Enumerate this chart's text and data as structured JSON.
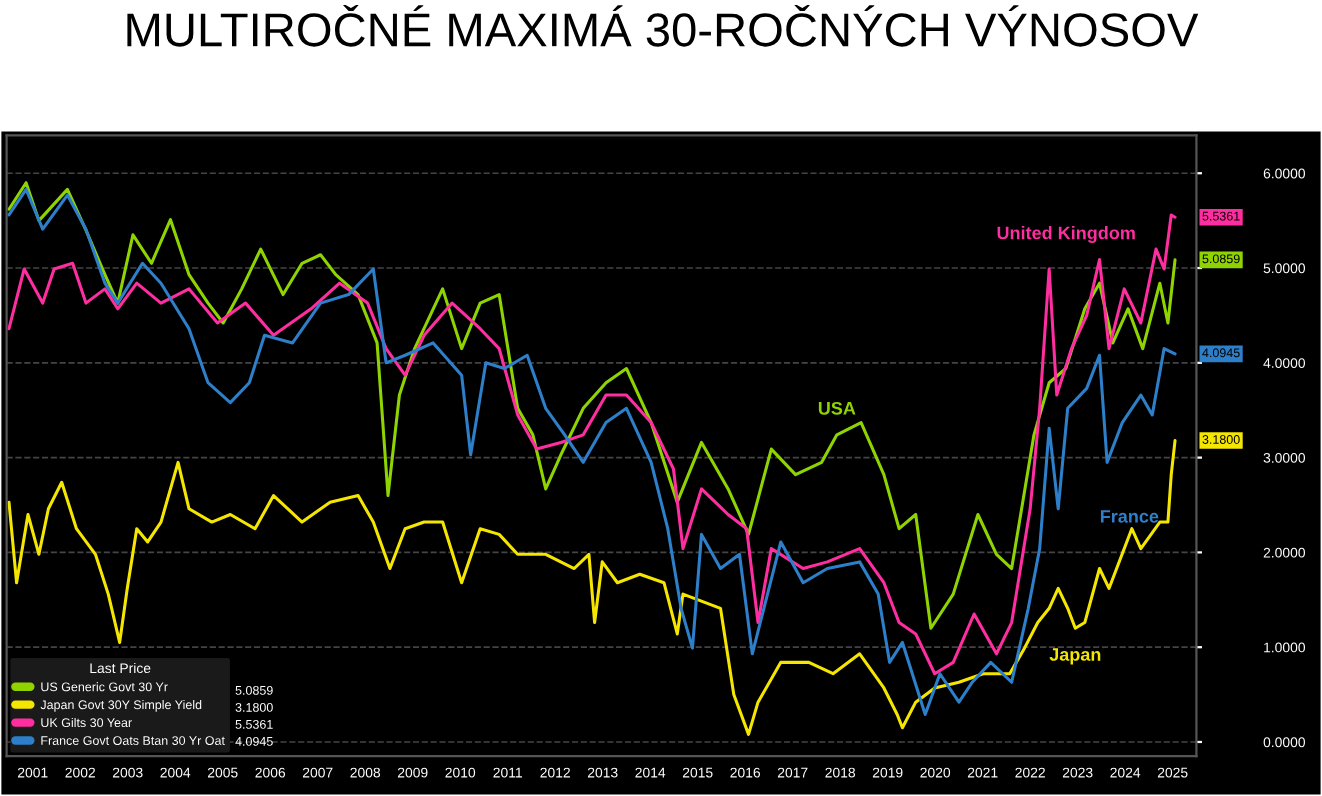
{
  "chart_data": {
    "type": "line",
    "title": "MULTIROČNÉ MAXIMÁ 30-ROČNÝCH VÝNOSOV",
    "legend_title": "Last Price",
    "legend": "bottom left",
    "grid": "y",
    "xlim": [
      2000.95,
      2026.0
    ],
    "ylim": [
      -0.15,
      6.4
    ],
    "xticks": [
      {
        "value": 2001.5,
        "label": "2001"
      },
      {
        "value": 2002.5,
        "label": "2002"
      },
      {
        "value": 2003.5,
        "label": "2003"
      },
      {
        "value": 2004.5,
        "label": "2004"
      },
      {
        "value": 2005.5,
        "label": "2005"
      },
      {
        "value": 2006.5,
        "label": "2006"
      },
      {
        "value": 2007.5,
        "label": "2007"
      },
      {
        "value": 2008.5,
        "label": "2008"
      },
      {
        "value": 2009.5,
        "label": "2009"
      },
      {
        "value": 2010.5,
        "label": "2010"
      },
      {
        "value": 2011.5,
        "label": "2011"
      },
      {
        "value": 2012.5,
        "label": "2012"
      },
      {
        "value": 2013.5,
        "label": "2013"
      },
      {
        "value": 2014.5,
        "label": "2014"
      },
      {
        "value": 2015.5,
        "label": "2015"
      },
      {
        "value": 2016.5,
        "label": "2016"
      },
      {
        "value": 2017.5,
        "label": "2017"
      },
      {
        "value": 2018.5,
        "label": "2018"
      },
      {
        "value": 2019.5,
        "label": "2019"
      },
      {
        "value": 2020.5,
        "label": "2020"
      },
      {
        "value": 2021.5,
        "label": "2021"
      },
      {
        "value": 2022.5,
        "label": "2022"
      },
      {
        "value": 2023.5,
        "label": "2023"
      },
      {
        "value": 2024.5,
        "label": "2024"
      },
      {
        "value": 2025.5,
        "label": "2025"
      }
    ],
    "yticks": [
      {
        "value": 0,
        "label": "0.0000"
      },
      {
        "value": 1,
        "label": "1.0000"
      },
      {
        "value": 2,
        "label": "2.0000"
      },
      {
        "value": 3,
        "label": "3.0000"
      },
      {
        "value": 4,
        "label": "4.0000"
      },
      {
        "value": 5,
        "label": "5.0000"
      },
      {
        "value": 6,
        "label": "6.0000"
      }
    ],
    "series": [
      {
        "name": "US Generic Govt 30 Yr",
        "color": "#8fd400",
        "x": [
          2001.0,
          2001.36,
          2001.63,
          2002.23,
          2002.62,
          2003.02,
          2003.29,
          2003.61,
          2004.0,
          2004.4,
          2004.79,
          2005.19,
          2005.51,
          2005.9,
          2006.3,
          2006.77,
          2007.17,
          2007.56,
          2007.88,
          2008.35,
          2008.75,
          2008.98,
          2009.22,
          2009.54,
          2010.13,
          2010.53,
          2010.92,
          2011.32,
          2011.71,
          2012.03,
          2012.3,
          2012.62,
          2013.09,
          2013.57,
          2014.0,
          2014.52,
          2015.07,
          2015.58,
          2016.14,
          2016.57,
          2017.05,
          2017.56,
          2018.11,
          2018.43,
          2018.94,
          2019.42,
          2019.74,
          2020.09,
          2020.41,
          2020.88,
          2021.4,
          2021.79,
          2022.11,
          2022.58,
          2022.9,
          2023.25,
          2023.65,
          2023.96,
          2024.24,
          2024.56,
          2024.87,
          2025.23,
          2025.4,
          2025.55
        ],
        "values": [
          5.62,
          5.9,
          5.5,
          5.83,
          5.4,
          4.93,
          4.63,
          5.35,
          5.05,
          5.51,
          4.93,
          4.63,
          4.42,
          4.78,
          5.2,
          4.72,
          5.05,
          5.14,
          4.93,
          4.72,
          4.21,
          2.6,
          3.66,
          4.15,
          4.78,
          4.15,
          4.63,
          4.72,
          3.52,
          3.24,
          2.67,
          3.03,
          3.52,
          3.79,
          3.94,
          3.37,
          2.53,
          3.16,
          2.67,
          2.19,
          3.09,
          2.82,
          2.95,
          3.24,
          3.37,
          2.82,
          2.25,
          2.4,
          1.2,
          1.56,
          2.4,
          1.98,
          1.83,
          3.24,
          3.79,
          3.94,
          4.57,
          4.84,
          4.21,
          4.57,
          4.15,
          4.84,
          4.42,
          5.0859
        ]
      },
      {
        "name": "Japan Govt 30Y Simple Yield",
        "color": "#f5e600",
        "x": [
          2001.0,
          2001.16,
          2001.4,
          2001.63,
          2001.83,
          2002.11,
          2002.42,
          2002.82,
          2003.09,
          2003.33,
          2003.49,
          2003.69,
          2003.92,
          2004.2,
          2004.56,
          2004.79,
          2005.27,
          2005.66,
          2006.18,
          2006.57,
          2007.17,
          2007.76,
          2008.35,
          2008.67,
          2009.02,
          2009.34,
          2009.74,
          2010.13,
          2010.53,
          2010.92,
          2011.32,
          2011.71,
          2012.3,
          2012.9,
          2013.21,
          2013.33,
          2013.49,
          2013.81,
          2014.28,
          2014.79,
          2015.07,
          2015.19,
          2015.98,
          2016.26,
          2016.57,
          2016.77,
          2017.25,
          2017.84,
          2018.35,
          2018.91,
          2019.42,
          2019.7,
          2019.81,
          2020.09,
          2020.49,
          2021.0,
          2021.51,
          2022.07,
          2022.38,
          2022.66,
          2022.9,
          2023.09,
          2023.29,
          2023.45,
          2023.65,
          2023.96,
          2024.16,
          2024.64,
          2024.83,
          2025.23,
          2025.4,
          2025.47,
          2025.55
        ],
        "values": [
          2.53,
          1.68,
          2.4,
          1.98,
          2.46,
          2.74,
          2.25,
          1.98,
          1.56,
          1.05,
          1.62,
          2.25,
          2.11,
          2.32,
          2.95,
          2.46,
          2.32,
          2.4,
          2.25,
          2.6,
          2.32,
          2.53,
          2.6,
          2.32,
          1.83,
          2.25,
          2.32,
          2.32,
          1.68,
          2.25,
          2.19,
          1.98,
          1.98,
          1.83,
          1.98,
          1.26,
          1.9,
          1.68,
          1.77,
          1.68,
          1.14,
          1.56,
          1.41,
          0.5,
          0.08,
          0.42,
          0.84,
          0.84,
          0.72,
          0.93,
          0.57,
          0.29,
          0.15,
          0.42,
          0.57,
          0.63,
          0.72,
          0.72,
          0.99,
          1.26,
          1.41,
          1.62,
          1.41,
          1.2,
          1.26,
          1.83,
          1.62,
          2.25,
          2.04,
          2.32,
          2.32,
          2.82,
          3.18
        ]
      },
      {
        "name": "UK Gilts 30 Year",
        "color": "#ff2ea0",
        "x": [
          2001.0,
          2001.32,
          2001.71,
          2001.95,
          2002.34,
          2002.62,
          2003.02,
          2003.29,
          2003.69,
          2004.2,
          2004.79,
          2005.39,
          2005.98,
          2006.57,
          2007.36,
          2007.96,
          2008.55,
          2008.94,
          2009.34,
          2009.74,
          2010.33,
          2010.92,
          2011.32,
          2011.71,
          2012.11,
          2012.62,
          2013.09,
          2013.57,
          2014.0,
          2014.52,
          2014.99,
          2015.19,
          2015.58,
          2016.14,
          2016.53,
          2016.77,
          2017.05,
          2017.72,
          2018.23,
          2018.91,
          2019.42,
          2019.74,
          2020.09,
          2020.49,
          2020.88,
          2021.32,
          2021.79,
          2022.11,
          2022.5,
          2022.7,
          2022.9,
          2023.06,
          2023.37,
          2023.69,
          2023.96,
          2024.16,
          2024.48,
          2024.83,
          2025.15,
          2025.32,
          2025.47,
          2025.55
        ],
        "values": [
          4.36,
          4.99,
          4.63,
          4.99,
          5.05,
          4.63,
          4.78,
          4.57,
          4.84,
          4.63,
          4.78,
          4.42,
          4.63,
          4.29,
          4.57,
          4.84,
          4.63,
          4.15,
          3.87,
          4.29,
          4.63,
          4.36,
          4.15,
          3.45,
          3.09,
          3.16,
          3.24,
          3.66,
          3.66,
          3.37,
          2.88,
          2.04,
          2.67,
          2.4,
          2.25,
          1.26,
          2.04,
          1.83,
          1.9,
          2.04,
          1.68,
          1.26,
          1.14,
          0.72,
          0.84,
          1.35,
          0.93,
          1.26,
          2.46,
          3.52,
          4.99,
          3.66,
          4.15,
          4.5,
          5.09,
          4.15,
          4.78,
          4.42,
          5.2,
          4.99,
          5.56,
          5.5361
        ]
      },
      {
        "name": "France Govt Oats Btan 30 Yr Oat",
        "color": "#2e7fc9",
        "x": [
          2001.0,
          2001.36,
          2001.71,
          2002.23,
          2002.62,
          2003.02,
          2003.29,
          2003.81,
          2004.2,
          2004.79,
          2005.19,
          2005.66,
          2006.06,
          2006.38,
          2006.97,
          2007.56,
          2008.15,
          2008.67,
          2008.94,
          2009.34,
          2009.93,
          2010.53,
          2010.72,
          2011.04,
          2011.43,
          2011.91,
          2012.3,
          2012.7,
          2013.09,
          2013.57,
          2014.0,
          2014.52,
          2014.87,
          2015.15,
          2015.39,
          2015.58,
          2015.98,
          2016.38,
          2016.65,
          2016.97,
          2017.25,
          2017.72,
          2018.23,
          2018.91,
          2019.3,
          2019.54,
          2019.81,
          2020.29,
          2020.6,
          2021.0,
          2021.28,
          2021.67,
          2022.11,
          2022.46,
          2022.7,
          2022.9,
          2023.09,
          2023.29,
          2023.69,
          2023.96,
          2024.12,
          2024.44,
          2024.83,
          2025.07,
          2025.32,
          2025.55
        ],
        "values": [
          5.56,
          5.83,
          5.41,
          5.77,
          5.41,
          4.84,
          4.63,
          5.05,
          4.84,
          4.36,
          3.79,
          3.58,
          3.79,
          4.29,
          4.21,
          4.63,
          4.72,
          4.99,
          4.0,
          4.08,
          4.21,
          3.87,
          3.03,
          4.0,
          3.94,
          4.08,
          3.52,
          3.24,
          2.95,
          3.37,
          3.52,
          2.95,
          2.25,
          1.41,
          0.99,
          2.19,
          1.83,
          1.98,
          0.93,
          1.56,
          2.11,
          1.68,
          1.83,
          1.9,
          1.56,
          0.84,
          1.05,
          0.29,
          0.72,
          0.42,
          0.63,
          0.84,
          0.63,
          1.41,
          2.04,
          3.31,
          2.46,
          3.52,
          3.73,
          4.08,
          2.95,
          3.37,
          3.66,
          3.45,
          4.15,
          4.0945
        ]
      }
    ],
    "annotations": [
      "5.0859",
      "3.1800",
      "5.5361",
      "4.0945",
      "5.0859",
      "3.1800",
      "5.5361",
      "4.0945",
      {
        "text": "USA",
        "x": 2018.43,
        "y": 3.24
      },
      {
        "text": "Japan",
        "x": 2023.45,
        "y": 1.2
      },
      {
        "text": "United Kingdom",
        "x": 2023.96,
        "y": 5.09
      },
      {
        "text": "France",
        "x": 2024.12,
        "y": 2.95
      }
    ]
  }
}
